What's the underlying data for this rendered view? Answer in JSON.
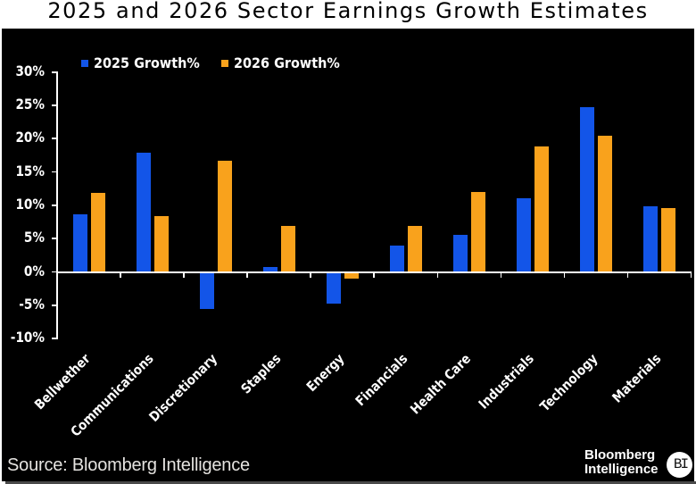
{
  "title": "2025 and 2026 Sector Earnings Growth Estimates",
  "source_note": "Source: Bloomberg Intelligence",
  "branding": {
    "line1": "Bloomberg",
    "line2": "Intelligence",
    "badge": "BI"
  },
  "legend": {
    "items": [
      {
        "label": "2025 Growth%",
        "color": "#1355e8"
      },
      {
        "label": "2026 Growth%",
        "color": "#f9a21c"
      }
    ]
  },
  "colors": {
    "series_2025": "#1355e8",
    "series_2026": "#f9a21c",
    "panel_background": "#000000",
    "page_background": "#ffffff",
    "axis": "#ffffff",
    "title_text": "#000000",
    "tick_label_text": "#ffffff",
    "source_text": "#e5e3e0",
    "shadow_strip": "#4a4a4a"
  },
  "chart_data": {
    "type": "bar",
    "title": "2025 and 2026 Sector Earnings Growth Estimates",
    "categories": [
      "Bellwether",
      "Communications",
      "Discretionary",
      "Staples",
      "Energy",
      "Financials",
      "Health Care",
      "Industrials",
      "Technology",
      "Materials"
    ],
    "series": [
      {
        "name": "2025 Growth%",
        "color": "#1355e8",
        "values": [
          8.7,
          17.9,
          -5.6,
          0.8,
          -4.8,
          4.0,
          5.5,
          11.0,
          24.7,
          9.8
        ]
      },
      {
        "name": "2026 Growth%",
        "color": "#f9a21c",
        "values": [
          11.9,
          8.4,
          16.7,
          6.9,
          -1.0,
          6.9,
          12.0,
          18.8,
          20.5,
          9.6
        ]
      }
    ],
    "xlabel": "",
    "ylabel": "",
    "ylim": [
      -10,
      30
    ],
    "ytick_step": 5,
    "ytick_labels": [
      "30%",
      "25%",
      "20%",
      "15%",
      "10%",
      "5%",
      "0%",
      "-5%",
      "-10%"
    ],
    "grid": false,
    "legend_position": "top-left",
    "x_tick_label_rotation_deg": 45
  }
}
